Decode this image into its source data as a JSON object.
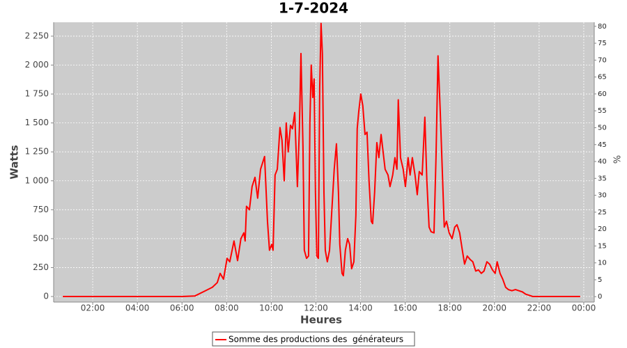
{
  "chart_data": {
    "type": "line",
    "title": "1-7-2024",
    "x_label": "Heures",
    "y_label": "Watts",
    "y2_label": "%",
    "x": [
      0.66,
      2.53,
      4.09,
      5.99,
      6.58,
      7.05,
      7.36,
      7.58,
      7.71,
      7.86,
      8.02,
      8.14,
      8.33,
      8.49,
      8.64,
      8.77,
      8.83,
      8.89,
      9.02,
      9.14,
      9.27,
      9.39,
      9.52,
      9.7,
      9.83,
      9.92,
      10.02,
      10.08,
      10.17,
      10.27,
      10.39,
      10.48,
      10.58,
      10.67,
      10.76,
      10.86,
      10.95,
      11.05,
      11.17,
      11.26,
      11.33,
      11.42,
      11.48,
      11.58,
      11.67,
      11.73,
      11.79,
      11.86,
      11.92,
      11.98,
      12.04,
      12.11,
      12.17,
      12.23,
      12.29,
      12.36,
      12.42,
      12.51,
      12.61,
      12.7,
      12.82,
      12.92,
      13.01,
      13.07,
      13.17,
      13.23,
      13.32,
      13.42,
      13.51,
      13.6,
      13.7,
      13.79,
      13.85,
      13.92,
      14.01,
      14.1,
      14.2,
      14.29,
      14.38,
      14.48,
      14.54,
      14.63,
      14.73,
      14.82,
      14.92,
      15.01,
      15.1,
      15.23,
      15.32,
      15.44,
      15.54,
      15.63,
      15.69,
      15.79,
      15.91,
      16.01,
      16.13,
      16.22,
      16.32,
      16.44,
      16.54,
      16.63,
      16.76,
      16.88,
      16.97,
      17.07,
      17.16,
      17.29,
      17.38,
      17.47,
      17.57,
      17.66,
      17.75,
      17.85,
      17.97,
      18.1,
      18.22,
      18.32,
      18.44,
      18.56,
      18.66,
      18.78,
      18.91,
      19.03,
      19.16,
      19.28,
      19.41,
      19.53,
      19.66,
      19.78,
      19.91,
      20.03,
      20.12,
      20.25,
      20.37,
      20.5,
      20.62,
      20.78,
      20.94,
      21.09,
      21.25,
      21.4,
      21.56,
      21.72,
      22.81,
      23.84
    ],
    "series": [
      {
        "name": "Somme des productions des  générateurs",
        "color": "#ff0000",
        "values": [
          0,
          0,
          0,
          0,
          5,
          50,
          80,
          120,
          200,
          150,
          330,
          300,
          480,
          310,
          500,
          550,
          480,
          780,
          750,
          950,
          1030,
          850,
          1100,
          1210,
          650,
          400,
          450,
          400,
          1050,
          1100,
          1460,
          1350,
          1000,
          1500,
          1250,
          1480,
          1450,
          1590,
          950,
          1450,
          2100,
          1300,
          400,
          330,
          350,
          1500,
          2000,
          1720,
          1880,
          900,
          350,
          330,
          1800,
          2360,
          2100,
          900,
          400,
          300,
          400,
          700,
          1100,
          1320,
          900,
          450,
          200,
          180,
          400,
          500,
          450,
          240,
          300,
          700,
          1450,
          1600,
          1750,
          1650,
          1400,
          1420,
          1000,
          650,
          630,
          900,
          1330,
          1200,
          1400,
          1250,
          1100,
          1050,
          950,
          1050,
          1200,
          1100,
          1700,
          1200,
          1100,
          950,
          1200,
          1050,
          1200,
          1050,
          880,
          1080,
          1050,
          1550,
          1000,
          600,
          560,
          550,
          1200,
          2080,
          1600,
          1100,
          600,
          650,
          550,
          500,
          600,
          620,
          550,
          400,
          280,
          350,
          320,
          300,
          220,
          230,
          200,
          220,
          300,
          280,
          230,
          200,
          300,
          200,
          150,
          80,
          60,
          50,
          60,
          50,
          40,
          20,
          10,
          0,
          0,
          0
        ]
      }
    ],
    "xlim": [
      0.25,
      24.47
    ],
    "xticks": [
      {
        "value": 2,
        "label": "02:00"
      },
      {
        "value": 4,
        "label": "04:00"
      },
      {
        "value": 6,
        "label": "06:00"
      },
      {
        "value": 8,
        "label": "08:00"
      },
      {
        "value": 10,
        "label": "10:00"
      },
      {
        "value": 12,
        "label": "12:00"
      },
      {
        "value": 14,
        "label": "14:00"
      },
      {
        "value": 16,
        "label": "16:00"
      },
      {
        "value": 18,
        "label": "18:00"
      },
      {
        "value": 20,
        "label": "20:00"
      },
      {
        "value": 22,
        "label": "22:00"
      },
      {
        "value": 24,
        "label": "00:00"
      }
    ],
    "ylim": [
      -48,
      2370
    ],
    "yticks": [
      0,
      250,
      500,
      750,
      {
        "value": 1000,
        "label": "1 000"
      },
      {
        "value": 1250,
        "label": "1 250"
      },
      {
        "value": 1500,
        "label": "1 500"
      },
      {
        "value": 1750,
        "label": "1 750"
      },
      {
        "value": 2000,
        "label": "2 000"
      },
      {
        "value": 2250,
        "label": "2 250"
      }
    ],
    "y2lim": [
      -1.6,
      81.2
    ],
    "y2ticks": [
      0,
      5,
      10,
      15,
      20,
      25,
      30,
      35,
      40,
      45,
      50,
      55,
      60,
      65,
      70,
      75,
      80
    ],
    "grid": true,
    "legend": "bottom"
  }
}
